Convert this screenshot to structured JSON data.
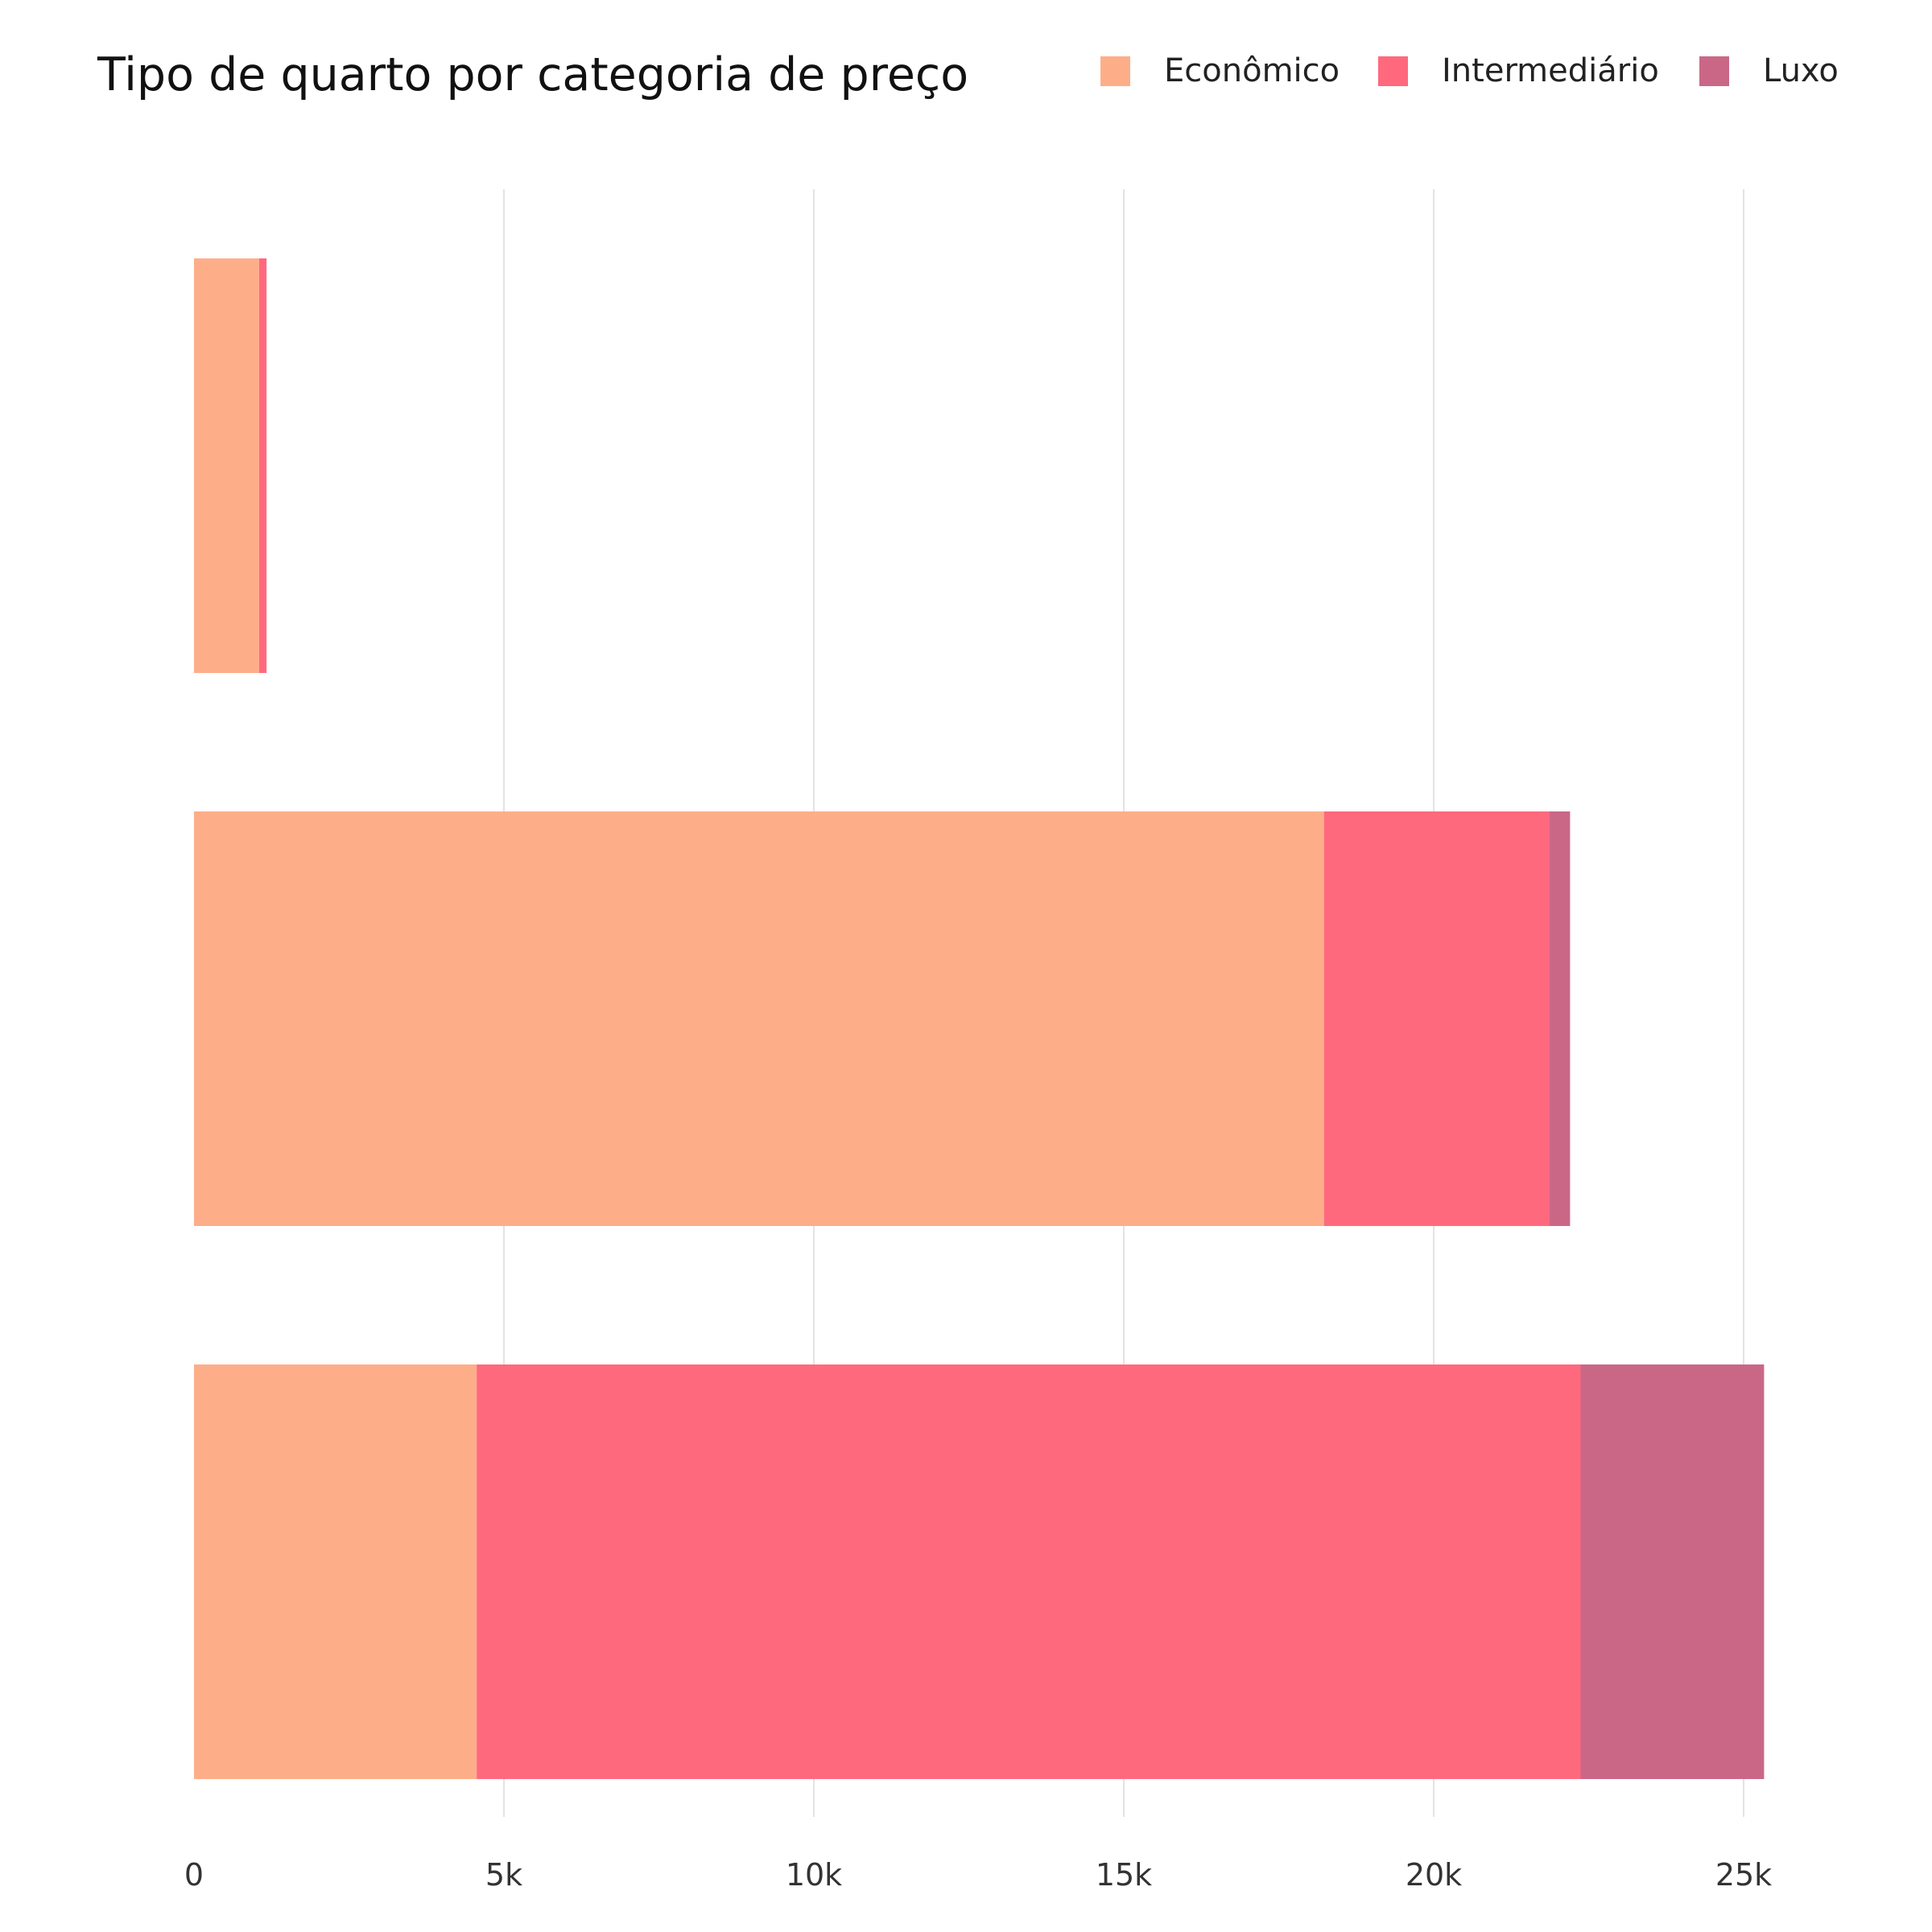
{
  "chart_data": {
    "type": "bar",
    "orientation": "horizontal",
    "stacked": true,
    "title": "Tipo de quarto por categoria de preço",
    "xlabel": "",
    "ylabel": "",
    "categories": [
      "",
      "",
      ""
    ],
    "series": [
      {
        "name": "Econômico",
        "color": "#fdae89",
        "values": [
          1050,
          18230,
          4560
        ]
      },
      {
        "name": "Intermediário",
        "color": "#ff697e",
        "values": [
          120,
          3640,
          17810
        ]
      },
      {
        "name": "Luxo",
        "color": "#ca6787",
        "values": [
          0,
          330,
          2960
        ]
      }
    ],
    "xlim": [
      0,
      25900
    ],
    "x_ticks": [
      0,
      5000,
      10000,
      15000,
      20000,
      25000
    ],
    "x_tick_labels": [
      "0",
      "5k",
      "10k",
      "15k",
      "20k",
      "25k"
    ],
    "grid": "vertical",
    "legend_position": "top-right"
  }
}
